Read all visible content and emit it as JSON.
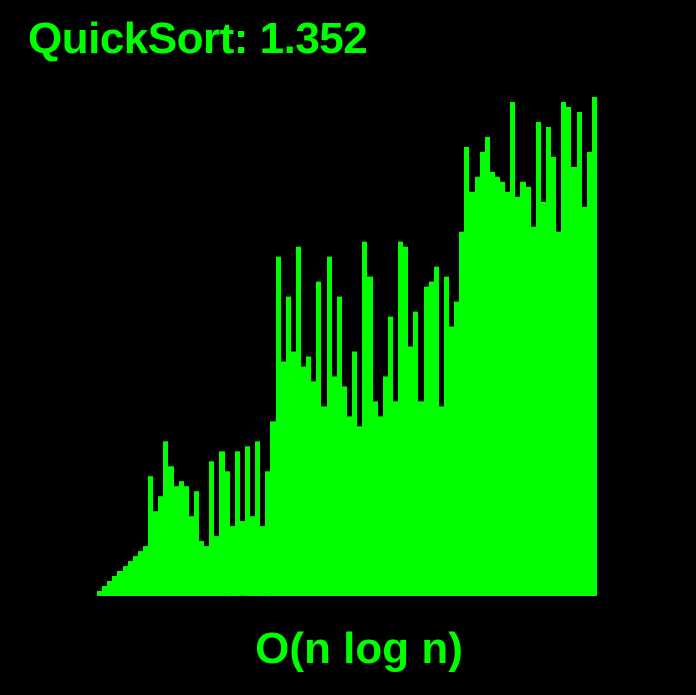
{
  "accent_color": "#00ff00",
  "background_color": "#000000",
  "chart_data": {
    "type": "bar",
    "title": "QuickSort: 1.352",
    "xlabel": "O(n log n)",
    "ylabel": "",
    "ylim": [
      0,
      100
    ],
    "grid": false,
    "legend": "none",
    "values": [
      1,
      2,
      3,
      4,
      5,
      6,
      7,
      8,
      9,
      10,
      24,
      17,
      20,
      31,
      26,
      22,
      23,
      22,
      16,
      21,
      11,
      10,
      27,
      12,
      29,
      25,
      14,
      29,
      15,
      30,
      16,
      31,
      14,
      25,
      35,
      68,
      47,
      60,
      49,
      70,
      46,
      48,
      43,
      63,
      38,
      68,
      44,
      60,
      42,
      36,
      49,
      34,
      71,
      64,
      39,
      36,
      44,
      56,
      39,
      71,
      70,
      50,
      57,
      39,
      62,
      63,
      66,
      38,
      64,
      54,
      59,
      73,
      90,
      81,
      84,
      89,
      92,
      85,
      84,
      83,
      81,
      99,
      80,
      83,
      82,
      74,
      95,
      79,
      94,
      88,
      73,
      99,
      98,
      86,
      97,
      78,
      89,
      100
    ],
    "series": [
      {
        "values": [
          1,
          2,
          3,
          4,
          5,
          6,
          7,
          8,
          9,
          10,
          24,
          17,
          20,
          31,
          26,
          22,
          23,
          22,
          16,
          21,
          11,
          10,
          27,
          12,
          29,
          25,
          14,
          29,
          15,
          30,
          16,
          31,
          14,
          25,
          35,
          68,
          47,
          60,
          49,
          70,
          46,
          48,
          43,
          63,
          38,
          68,
          44,
          60,
          42,
          36,
          49,
          34,
          71,
          64,
          39,
          36,
          44,
          56,
          39,
          71,
          70,
          50,
          57,
          39,
          62,
          63,
          66,
          38,
          64,
          54,
          59,
          73,
          90,
          81,
          84,
          89,
          92,
          85,
          84,
          83,
          81,
          99,
          80,
          83,
          82,
          74,
          95,
          79,
          94,
          88,
          73,
          99,
          98,
          86,
          97,
          78,
          89,
          100
        ]
      }
    ]
  }
}
